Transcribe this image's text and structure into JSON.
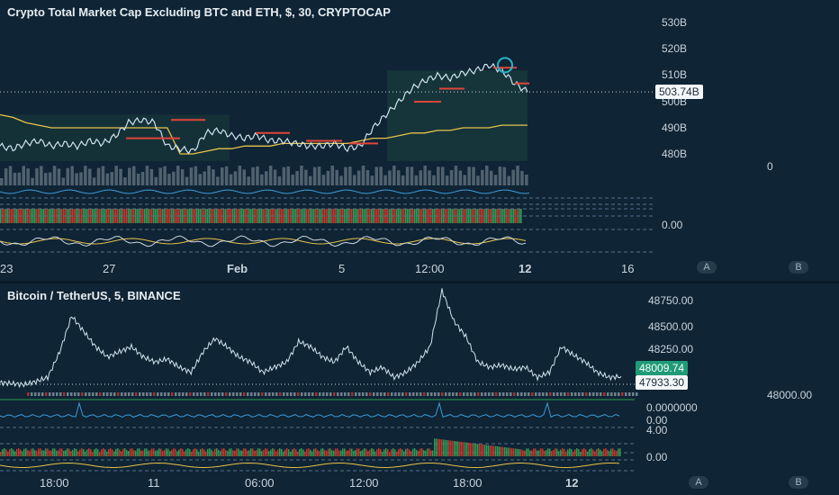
{
  "top_chart": {
    "title": "Crypto Total Market Cap Excluding BTC and ETH, $, 30, CRYPTOCAP",
    "price_ticks": [
      "530B",
      "520B",
      "510B",
      "500B",
      "490B",
      "480B"
    ],
    "current_price": "503.74B",
    "indicator_zero": "0",
    "indicator_level": "0.00",
    "time_ticks": [
      "23",
      "27",
      "Feb",
      "5",
      "12:00",
      "12",
      "16"
    ],
    "btn_a": "A",
    "btn_b": "B",
    "colors": {
      "line": "#cfe3ee",
      "ma": "#e8c24a",
      "marker": "#e0453a",
      "circle": "#2ab3c8"
    }
  },
  "bottom_chart": {
    "title": "Bitcoin / TetherUS, 5, BINANCE",
    "price_ticks": [
      "48750.00",
      "48500.00",
      "48250.00"
    ],
    "last_price": "48009.74",
    "price_line": "47933.30",
    "side_value": "48000.00",
    "indicator_value_1": "0.0000000",
    "indicator_value_2": "0.00",
    "indicator_value_3": "4.00",
    "indicator_value_4": "0.00",
    "time_ticks": [
      "18:00",
      "11",
      "06:00",
      "12:00",
      "18:00",
      "12"
    ],
    "btn_a": "A",
    "btn_b": "B",
    "colors": {
      "line": "#cfe3ee",
      "bull": "#2e9c52",
      "bear": "#c8362d",
      "tag": "#1f9b77"
    }
  },
  "chart_data": [
    {
      "type": "line",
      "title": "Crypto Total Market Cap Excluding BTC and ETH, $, 30, CRYPTOCAP",
      "x_ticks": [
        "23",
        "27",
        "Feb",
        "5",
        "12:00",
        "12",
        "16"
      ],
      "y_ticks": [
        530,
        520,
        510,
        500,
        490,
        480
      ],
      "ylim": [
        475,
        535
      ],
      "unit": "B",
      "series": [
        {
          "values": [
            483,
            482,
            484,
            485,
            483,
            484,
            483,
            485,
            484,
            487,
            492,
            493,
            492,
            483,
            482,
            481,
            488,
            489,
            487,
            486,
            487,
            485,
            485,
            484,
            483,
            483,
            484,
            482,
            483,
            490,
            495,
            500,
            505,
            508,
            510,
            509,
            511,
            512,
            514,
            512,
            507,
            503.74
          ]
        },
        {
          "values": [
            495,
            494,
            492,
            491,
            490,
            490,
            490,
            490,
            490,
            490,
            490,
            490,
            490,
            490,
            480,
            480,
            481,
            482,
            482,
            483,
            483,
            483,
            484,
            484,
            484,
            484,
            484,
            484,
            485,
            486,
            486,
            487,
            488,
            488,
            489,
            489,
            490,
            490,
            490,
            491,
            491,
            491
          ]
        }
      ],
      "last_value": 503.74
    },
    {
      "type": "line",
      "title": "Bitcoin / TetherUS, 5, BINANCE",
      "x_ticks": [
        "18:00",
        "11",
        "06:00",
        "12:00",
        "18:00",
        "12"
      ],
      "y_ticks": [
        48750,
        48500,
        48250
      ],
      "ylim": [
        47900,
        48900
      ],
      "series": [
        {
          "values": [
            47950,
            47940,
            47930,
            47960,
            48000,
            48250,
            48600,
            48450,
            48300,
            48200,
            48250,
            48300,
            48200,
            48150,
            48180,
            48100,
            48050,
            48250,
            48380,
            48300,
            48200,
            48150,
            48050,
            48100,
            48150,
            48350,
            48300,
            48200,
            48150,
            48300,
            48150,
            48050,
            48100,
            48000,
            48050,
            48150,
            48300,
            48850,
            48550,
            48400,
            48150,
            48100,
            48120,
            48080,
            48100,
            48000,
            48050,
            48300,
            48220,
            48150,
            48050,
            48000,
            48009.74
          ]
        }
      ],
      "last_value": 48009.74,
      "price_line": 47933.3
    }
  ]
}
